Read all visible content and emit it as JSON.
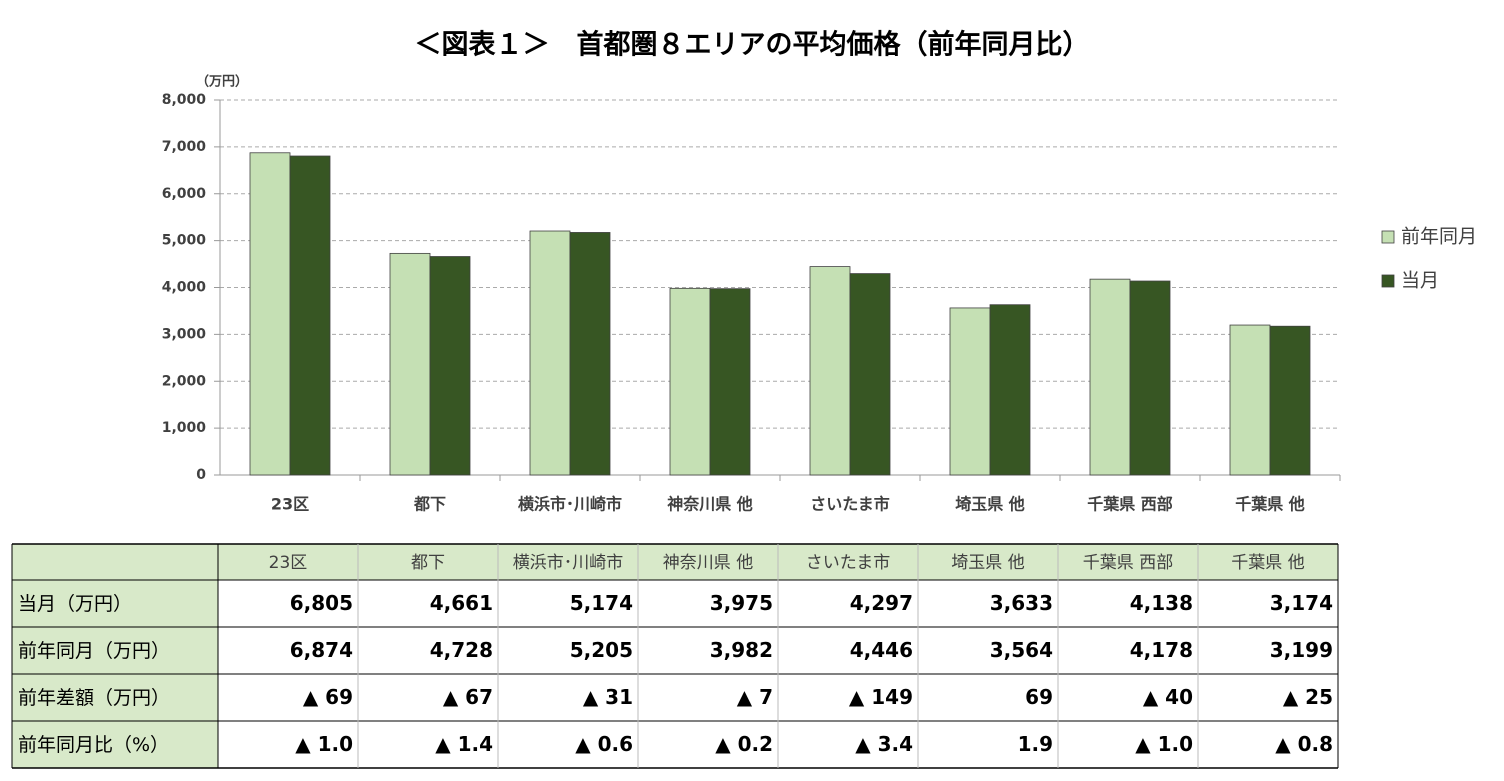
{
  "chart_data": {
    "type": "bar",
    "title": "＜図表１＞　首都圏８エリアの平均価格（前年同月比）",
    "y_unit": "（万円）",
    "categories": [
      "23区",
      "都下",
      "横浜市･川崎市",
      "神奈川県 他",
      "さいたま市",
      "埼玉県 他",
      "千葉県 西部",
      "千葉県 他"
    ],
    "series": [
      {
        "name": "前年同月",
        "color": "#c5e0b4",
        "values": [
          6874,
          4728,
          5205,
          3982,
          4446,
          3564,
          4178,
          3199
        ]
      },
      {
        "name": "当月",
        "color": "#375623",
        "values": [
          6805,
          4661,
          5174,
          3975,
          4297,
          3633,
          4138,
          3174
        ]
      }
    ],
    "ylim": [
      0,
      8000
    ],
    "yticks": [
      0,
      {
        "value": 1000,
        "label": "1,000"
      },
      {
        "value": 2000,
        "label": "2,000"
      },
      {
        "value": 3000,
        "label": "3,000"
      },
      {
        "value": 4000,
        "label": "4,000"
      },
      {
        "value": 5000,
        "label": "5,000"
      },
      {
        "value": 6000,
        "label": "6,000"
      },
      {
        "value": 7000,
        "label": "7,000"
      },
      {
        "value": 8000,
        "label": "8,000"
      }
    ],
    "grid": true,
    "legend": "right"
  },
  "table": {
    "rows": [
      {
        "label": "当月（万円）",
        "cells": [
          "6,805",
          "4,661",
          "5,174",
          "3,975",
          "4,297",
          "3,633",
          "4,138",
          "3,174"
        ]
      },
      {
        "label": "前年同月（万円）",
        "cells": [
          "6,874",
          "4,728",
          "5,205",
          "3,982",
          "4,446",
          "3,564",
          "4,178",
          "3,199"
        ]
      },
      {
        "label": "前年差額（万円）",
        "cells": [
          "▲ 69",
          "▲ 67",
          "▲ 31",
          "▲ 7",
          "▲ 149",
          "69",
          "▲ 40",
          "▲ 25"
        ]
      },
      {
        "label": "前年同月比（%）",
        "cells": [
          "▲ 1.0",
          "▲ 1.4",
          "▲ 0.6",
          "▲ 0.2",
          "▲ 3.4",
          "1.9",
          "▲ 1.0",
          "▲ 0.8"
        ]
      }
    ]
  }
}
